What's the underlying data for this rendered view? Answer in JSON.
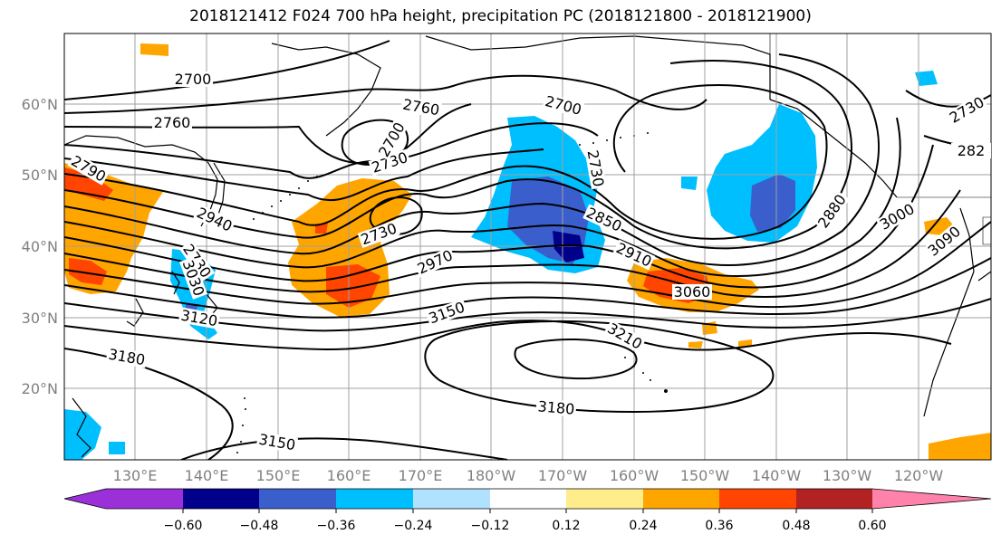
{
  "title": "2018121412 F024 700 hPa height, precipitation PC (2018121800 - 2018121900)",
  "lat_labels": [
    "60°N",
    "50°N",
    "40°N",
    "30°N",
    "20°N"
  ],
  "lon_labels": [
    "130°E",
    "140°E",
    "150°E",
    "160°E",
    "170°E",
    "180°W",
    "170°W",
    "160°W",
    "150°W",
    "140°W",
    "130°W",
    "120°W"
  ],
  "contour_labels": [
    "2700",
    "2760",
    "2760",
    "2700",
    "2730",
    "2700",
    "2730",
    "2790",
    "2940",
    "2730",
    "3030",
    "3120",
    "3180",
    "3150",
    "3150",
    "2970",
    "2730",
    "2850",
    "2910",
    "3060",
    "3210",
    "3180",
    "2880",
    "3000",
    "3090",
    "2730",
    "282"
  ],
  "colorbar": {
    "colors": [
      "#9b30d9",
      "#00008b",
      "#3a5fcd",
      "#00bfff",
      "#b0e2ff",
      "#ffffff",
      "#ffec8b",
      "#ffa500",
      "#ff4500",
      "#b22222",
      "#ff82ab"
    ],
    "tick_labels": [
      "−0.60",
      "−0.48",
      "−0.36",
      "−0.24",
      "−0.12",
      "0.12",
      "0.24",
      "0.36",
      "0.48",
      "0.60"
    ]
  }
}
